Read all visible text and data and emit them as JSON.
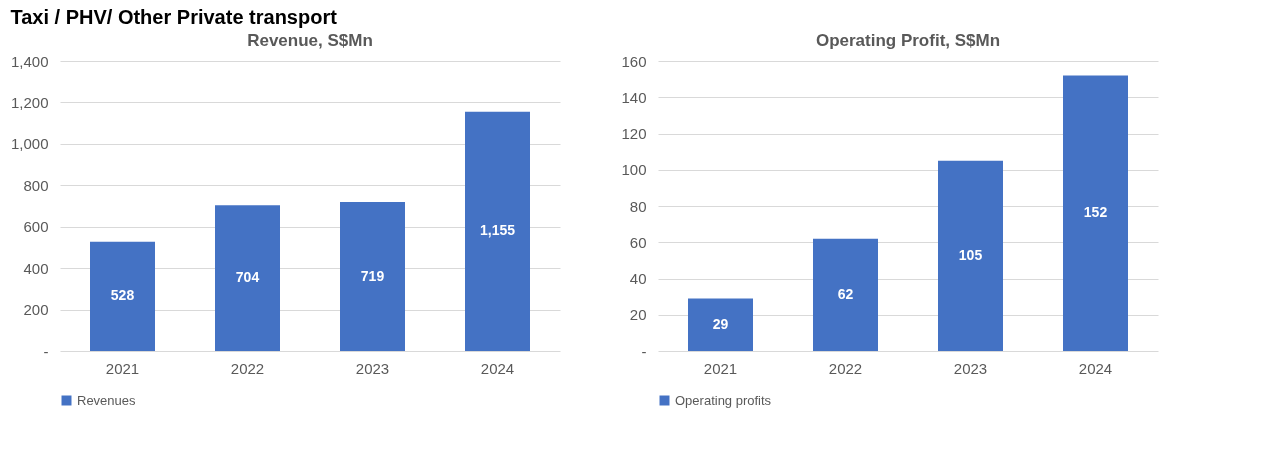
{
  "chart_data": [
    {
      "type": "bar",
      "title": "Revenue, S$Mn",
      "annotations": [
        "Taxi / PHV/ Other Private transport"
      ],
      "categories": [
        "2021",
        "2022",
        "2023",
        "2024"
      ],
      "series": [
        {
          "name": "Revenues",
          "color": "#4472c4",
          "values": [
            528,
            704,
            719,
            1155
          ]
        }
      ],
      "ylim": [
        0,
        1400
      ],
      "yticks": [
        {
          "value": 0,
          "label": "-"
        },
        {
          "value": 200,
          "label": "200"
        },
        {
          "value": 400,
          "label": "400"
        },
        {
          "value": 600,
          "label": "600"
        },
        {
          "value": 800,
          "label": "800"
        },
        {
          "value": 1000,
          "label": "1,000"
        },
        {
          "value": 1200,
          "label": "1,200"
        },
        {
          "value": 1400,
          "label": "1,400"
        }
      ],
      "grid": "y",
      "legend": "bottom",
      "value_labels": [
        "528",
        "704",
        "719",
        "1,155"
      ]
    },
    {
      "type": "bar",
      "title": "Operating Profit, S$Mn",
      "categories": [
        "2021",
        "2022",
        "2023",
        "2024"
      ],
      "series": [
        {
          "name": "Operating profits",
          "color": "#4472c4",
          "values": [
            29,
            62,
            105,
            152
          ]
        }
      ],
      "ylim": [
        0,
        160
      ],
      "yticks": [
        {
          "value": 0,
          "label": "-"
        },
        20,
        40,
        60,
        80,
        100,
        120,
        140,
        160
      ],
      "grid": "y",
      "legend": "bottom",
      "value_labels": [
        "29",
        "62",
        "105",
        "152"
      ]
    }
  ]
}
